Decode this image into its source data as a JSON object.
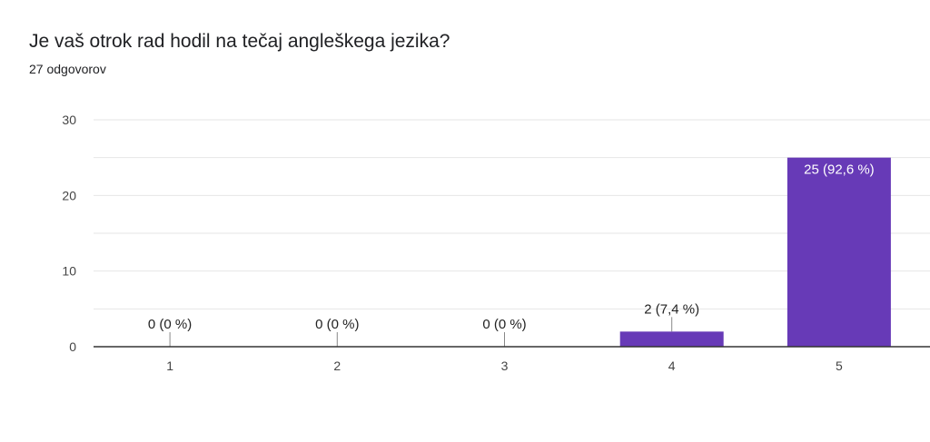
{
  "title": "Je vaš otrok rad hodil na tečaj angleškega jezika?",
  "subtitle": "27 odgovorov",
  "colors": {
    "bar": "#673ab7",
    "grid": "#e6e6e6",
    "axis": "#333333"
  },
  "chart_data": {
    "type": "bar",
    "categories": [
      "1",
      "2",
      "3",
      "4",
      "5"
    ],
    "values": [
      0,
      0,
      0,
      2,
      25
    ],
    "data_labels": [
      "0 (0 %)",
      "0 (0 %)",
      "0 (0 %)",
      "2 (7,4 %)",
      "25 (92,6 %)"
    ],
    "ylim": [
      0,
      30
    ],
    "y_ticks": [
      0,
      10,
      20,
      30
    ],
    "grid": true,
    "xlabel": "",
    "ylabel": ""
  }
}
